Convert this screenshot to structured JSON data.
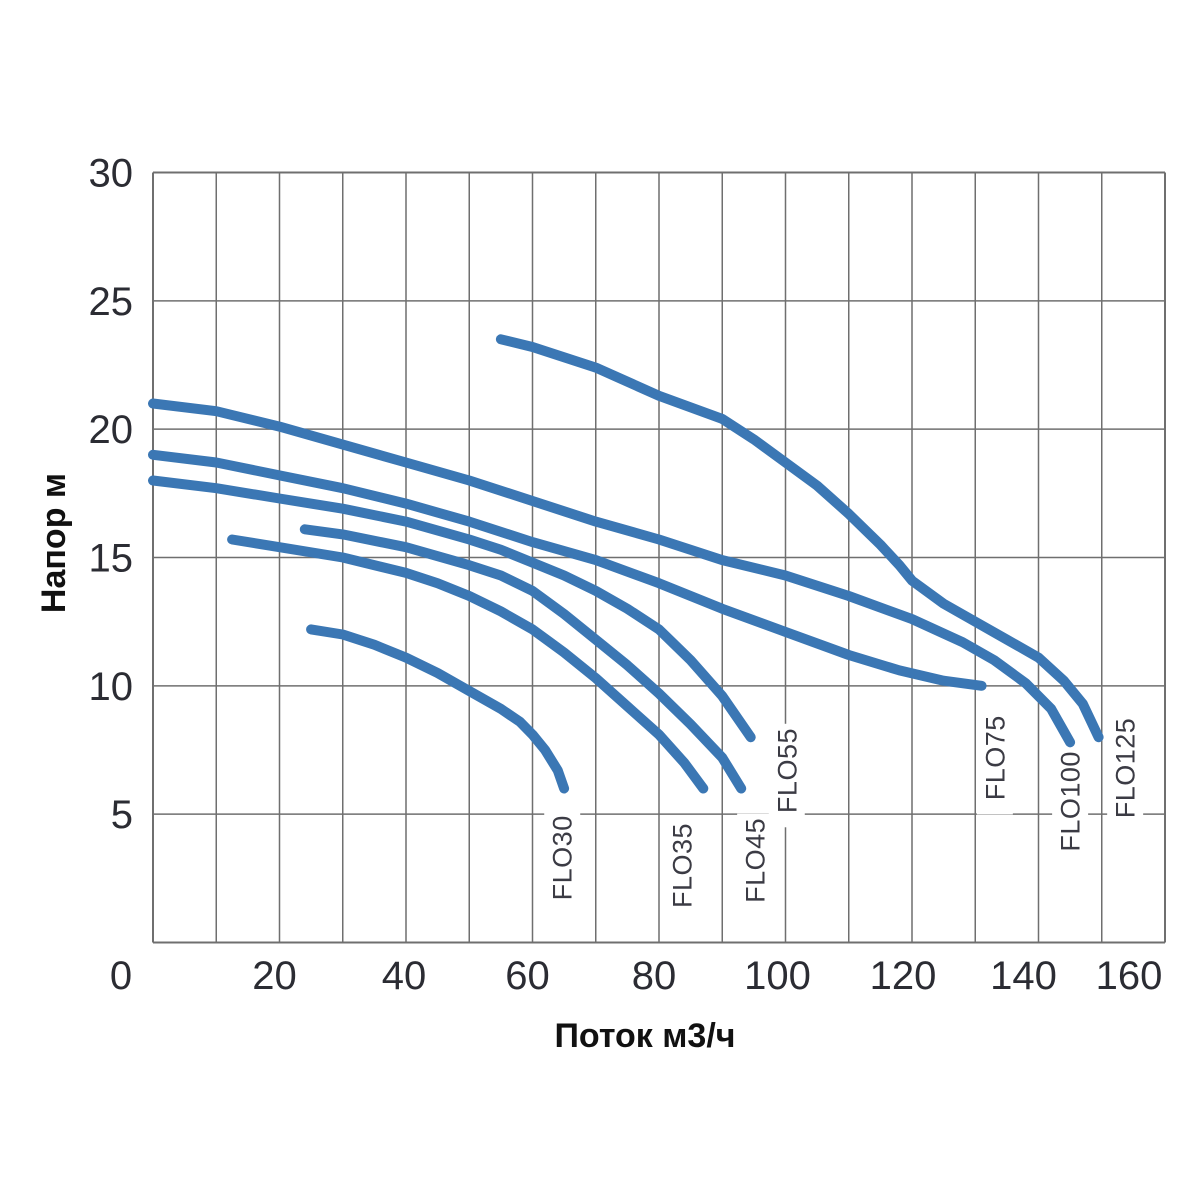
{
  "page": {
    "background": "#ffffff"
  },
  "colors": {
    "curve": "#3b77b4",
    "grid": "#6f6f6f",
    "tick_text": "#2b2c33",
    "axis_title_text": "#111111",
    "series_label_text": "#3b3b44",
    "background": "#ffffff"
  },
  "chart_data": {
    "type": "line",
    "title": "",
    "xlabel": "Поток м3/ч",
    "ylabel": "Напор м",
    "xlim": [
      0,
      160
    ],
    "ylim": [
      0,
      30
    ],
    "x_gridline_step": 10,
    "y_gridline_step": 5,
    "x_ticks": [
      0,
      20,
      40,
      60,
      80,
      100,
      120,
      140,
      160
    ],
    "y_ticks": [
      5,
      10,
      15,
      20,
      25,
      30
    ],
    "grid": true,
    "legend_position": "rotated-labels-at-curve-ends",
    "series": [
      {
        "name": "FLO30",
        "label_x": 64.7,
        "label_y": 3.3,
        "points": [
          [
            25,
            12.2
          ],
          [
            30,
            12.0
          ],
          [
            35,
            11.6
          ],
          [
            40,
            11.1
          ],
          [
            45,
            10.5
          ],
          [
            50,
            9.8
          ],
          [
            55,
            9.1
          ],
          [
            58,
            8.6
          ],
          [
            60,
            8.1
          ],
          [
            62,
            7.5
          ],
          [
            64,
            6.7
          ],
          [
            65,
            6.0
          ]
        ]
      },
      {
        "name": "FLO35",
        "label_x": 83.6,
        "label_y": 3.0,
        "points": [
          [
            12.5,
            15.7
          ],
          [
            20,
            15.4
          ],
          [
            30,
            15.0
          ],
          [
            40,
            14.4
          ],
          [
            45,
            14.0
          ],
          [
            50,
            13.5
          ],
          [
            55,
            12.9
          ],
          [
            60,
            12.2
          ],
          [
            65,
            11.3
          ],
          [
            70,
            10.3
          ],
          [
            75,
            9.2
          ],
          [
            80,
            8.1
          ],
          [
            84,
            7.0
          ],
          [
            87,
            6.0
          ]
        ]
      },
      {
        "name": "FLO45",
        "label_x": 95.2,
        "label_y": 3.2,
        "points": [
          [
            24,
            16.1
          ],
          [
            30,
            15.9
          ],
          [
            40,
            15.4
          ],
          [
            50,
            14.7
          ],
          [
            55,
            14.3
          ],
          [
            60,
            13.7
          ],
          [
            65,
            12.8
          ],
          [
            70,
            11.8
          ],
          [
            75,
            10.8
          ],
          [
            80,
            9.7
          ],
          [
            85,
            8.5
          ],
          [
            90,
            7.2
          ],
          [
            93,
            6.0
          ]
        ]
      },
      {
        "name": "FLO55",
        "label_x": 100.2,
        "label_y": 6.7,
        "points": [
          [
            0,
            18.0
          ],
          [
            10,
            17.7
          ],
          [
            20,
            17.3
          ],
          [
            30,
            16.9
          ],
          [
            40,
            16.4
          ],
          [
            50,
            15.7
          ],
          [
            55,
            15.3
          ],
          [
            60,
            14.8
          ],
          [
            65,
            14.3
          ],
          [
            70,
            13.7
          ],
          [
            75,
            13.0
          ],
          [
            80,
            12.2
          ],
          [
            85,
            11.0
          ],
          [
            90,
            9.6
          ],
          [
            94.5,
            8.0
          ]
        ]
      },
      {
        "name": "FLO75",
        "label_x": 133.1,
        "label_y": 7.2,
        "points": [
          [
            0,
            19.0
          ],
          [
            10,
            18.7
          ],
          [
            20,
            18.2
          ],
          [
            30,
            17.7
          ],
          [
            40,
            17.1
          ],
          [
            50,
            16.4
          ],
          [
            60,
            15.6
          ],
          [
            70,
            14.9
          ],
          [
            80,
            14.0
          ],
          [
            90,
            13.0
          ],
          [
            100,
            12.1
          ],
          [
            110,
            11.2
          ],
          [
            118,
            10.6
          ],
          [
            125,
            10.2
          ],
          [
            131,
            10.0
          ]
        ]
      },
      {
        "name": "FLO100",
        "label_x": 145.0,
        "label_y": 5.5,
        "points": [
          [
            0,
            21.0
          ],
          [
            10,
            20.7
          ],
          [
            20,
            20.1
          ],
          [
            30,
            19.4
          ],
          [
            40,
            18.7
          ],
          [
            50,
            18.0
          ],
          [
            60,
            17.2
          ],
          [
            70,
            16.4
          ],
          [
            80,
            15.7
          ],
          [
            90,
            14.9
          ],
          [
            100,
            14.3
          ],
          [
            110,
            13.5
          ],
          [
            120,
            12.6
          ],
          [
            128,
            11.7
          ],
          [
            133,
            11.0
          ],
          [
            138,
            10.1
          ],
          [
            142,
            9.1
          ],
          [
            145,
            7.8
          ]
        ]
      },
      {
        "name": "FLO125",
        "label_x": 153.7,
        "label_y": 6.8,
        "points": [
          [
            55,
            23.5
          ],
          [
            60,
            23.2
          ],
          [
            70,
            22.4
          ],
          [
            80,
            21.3
          ],
          [
            90,
            20.4
          ],
          [
            95,
            19.6
          ],
          [
            100,
            18.7
          ],
          [
            105,
            17.8
          ],
          [
            110,
            16.7
          ],
          [
            115,
            15.5
          ],
          [
            118,
            14.7
          ],
          [
            120,
            14.1
          ],
          [
            125,
            13.2
          ],
          [
            130,
            12.5
          ],
          [
            135,
            11.8
          ],
          [
            140,
            11.1
          ],
          [
            144,
            10.2
          ],
          [
            147,
            9.3
          ],
          [
            149.5,
            8.0
          ]
        ]
      }
    ]
  }
}
